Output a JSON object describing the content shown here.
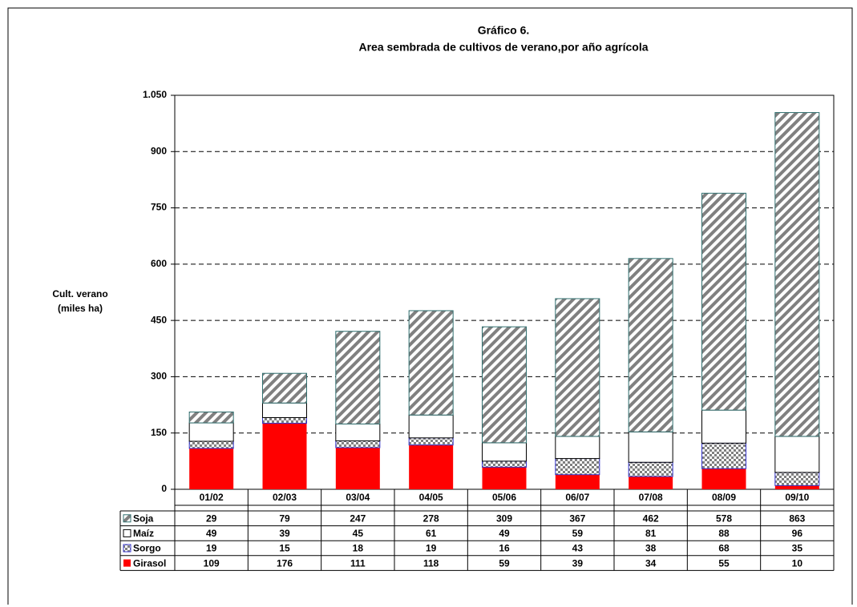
{
  "chart_data": {
    "type": "bar",
    "stacked": true,
    "title": [
      "Gráfico 6.",
      "Area sembrada de cultivos de verano,por año agrícola"
    ],
    "ylabel": [
      "Cult. verano",
      "(miles ha)"
    ],
    "categories": [
      "01/02",
      "02/03",
      "03/04",
      "04/05",
      "05/06",
      "06/07",
      "07/08",
      "08/09",
      "09/10"
    ],
    "series": [
      {
        "name": "Girasol",
        "color": "#ff0000",
        "values": [
          109,
          176,
          111,
          118,
          59,
          39,
          34,
          55,
          10
        ]
      },
      {
        "name": "Sorgo",
        "color": "#808080",
        "values": [
          19,
          15,
          18,
          19,
          16,
          43,
          38,
          68,
          35
        ]
      },
      {
        "name": "Maíz",
        "color": "#ffffff",
        "values": [
          49,
          39,
          45,
          61,
          49,
          59,
          81,
          88,
          96
        ]
      },
      {
        "name": "Soja",
        "color": "#808080",
        "values": [
          29,
          79,
          247,
          278,
          309,
          367,
          462,
          578,
          863
        ]
      }
    ],
    "ylim": [
      0,
      1050
    ],
    "yticks": [
      0,
      150,
      300,
      450,
      600,
      750,
      900,
      {
        "value": 1050,
        "label": "1.050"
      }
    ],
    "grid": true
  }
}
